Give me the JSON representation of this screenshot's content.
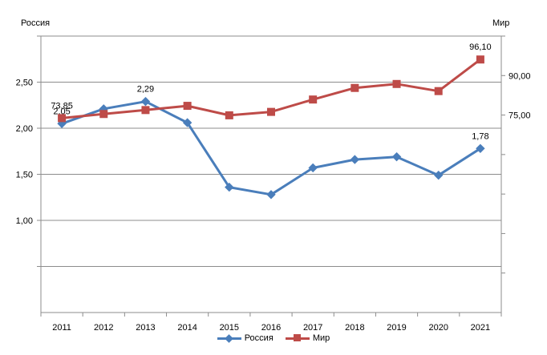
{
  "chart_data": {
    "type": "line",
    "categories": [
      "2011",
      "2012",
      "2013",
      "2014",
      "2015",
      "2016",
      "2017",
      "2018",
      "2019",
      "2020",
      "2021"
    ],
    "left_axis": {
      "title": "Россия",
      "range": [
        0.0,
        3.0
      ],
      "ticks": [
        {
          "value": 1.0,
          "label": "1,00"
        },
        {
          "value": 1.5,
          "label": "1,50"
        },
        {
          "value": 2.0,
          "label": "2,00"
        },
        {
          "value": 2.5,
          "label": "2,50"
        }
      ]
    },
    "right_axis": {
      "title": "Мир",
      "range": [
        0,
        105
      ],
      "ticks": [
        {
          "value": 75,
          "label": "75,00"
        },
        {
          "value": 90,
          "label": "90,00"
        }
      ]
    },
    "grid": true,
    "legend_position": "bottom",
    "series": [
      {
        "name": "Россия",
        "axis": "left",
        "color": "#4a7ebb",
        "marker": "diamond",
        "values": [
          2.05,
          2.21,
          2.29,
          2.06,
          1.36,
          1.28,
          1.57,
          1.66,
          1.69,
          1.49,
          1.78
        ],
        "data_labels": [
          {
            "index": 0,
            "text": "2,05"
          },
          {
            "index": 2,
            "text": "2,29"
          },
          {
            "index": 10,
            "text": "1,78"
          }
        ]
      },
      {
        "name": "Мир",
        "axis": "right",
        "color": "#be4b48",
        "marker": "square",
        "values": [
          73.85,
          75.4,
          76.9,
          78.5,
          74.9,
          76.2,
          80.9,
          85.3,
          86.8,
          84.1,
          96.1
        ],
        "data_labels": [
          {
            "index": 0,
            "text": "73,85"
          },
          {
            "index": 10,
            "text": "96,10"
          }
        ]
      }
    ]
  }
}
